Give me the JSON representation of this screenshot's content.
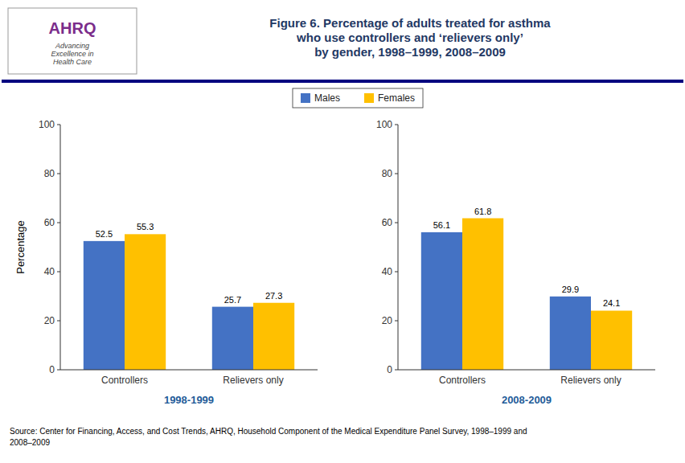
{
  "title": "Figure 6. Percentage of adults treated for asthma\nwho use controllers and ‘relievers only’\nby gender, 1998–1999, 2008–2009",
  "annotations": [
    "Source: Center for Financing, Access, and Cost Trends, AHRQ, Household Component of the Medical Expenditure Panel Survey,  1998–1999 and\n2008–2009",
    "AHRQ",
    "Advancing\nExcellence in\nHealth Care"
  ],
  "chart_data": [
    {
      "type": "bar",
      "x_label": "1998-1999",
      "y_label": "Percentage",
      "categories": [
        "Controllers",
        "Relievers only"
      ],
      "series": [
        {
          "name": "Males",
          "color": "#4472C4",
          "values": [
            52.5,
            25.7
          ]
        },
        {
          "name": "Females",
          "color": "#FFC000",
          "values": [
            55.3,
            27.3
          ]
        }
      ],
      "ylim": [
        0,
        100
      ],
      "yticks": [
        0,
        20,
        40,
        60,
        80,
        100
      ],
      "grid": false,
      "legend": "top",
      "data_labels": true
    },
    {
      "type": "bar",
      "x_label": "2008-2009",
      "categories": [
        "Controllers",
        "Relievers only"
      ],
      "series": [
        {
          "name": "Males",
          "color": "#4472C4",
          "values": [
            56.1,
            29.9
          ]
        },
        {
          "name": "Females",
          "color": "#FFC000",
          "values": [
            61.8,
            24.1
          ]
        }
      ],
      "ylim": [
        0,
        100
      ],
      "yticks": [
        0,
        20,
        40,
        60,
        80,
        100
      ],
      "grid": false,
      "data_labels": true
    }
  ]
}
